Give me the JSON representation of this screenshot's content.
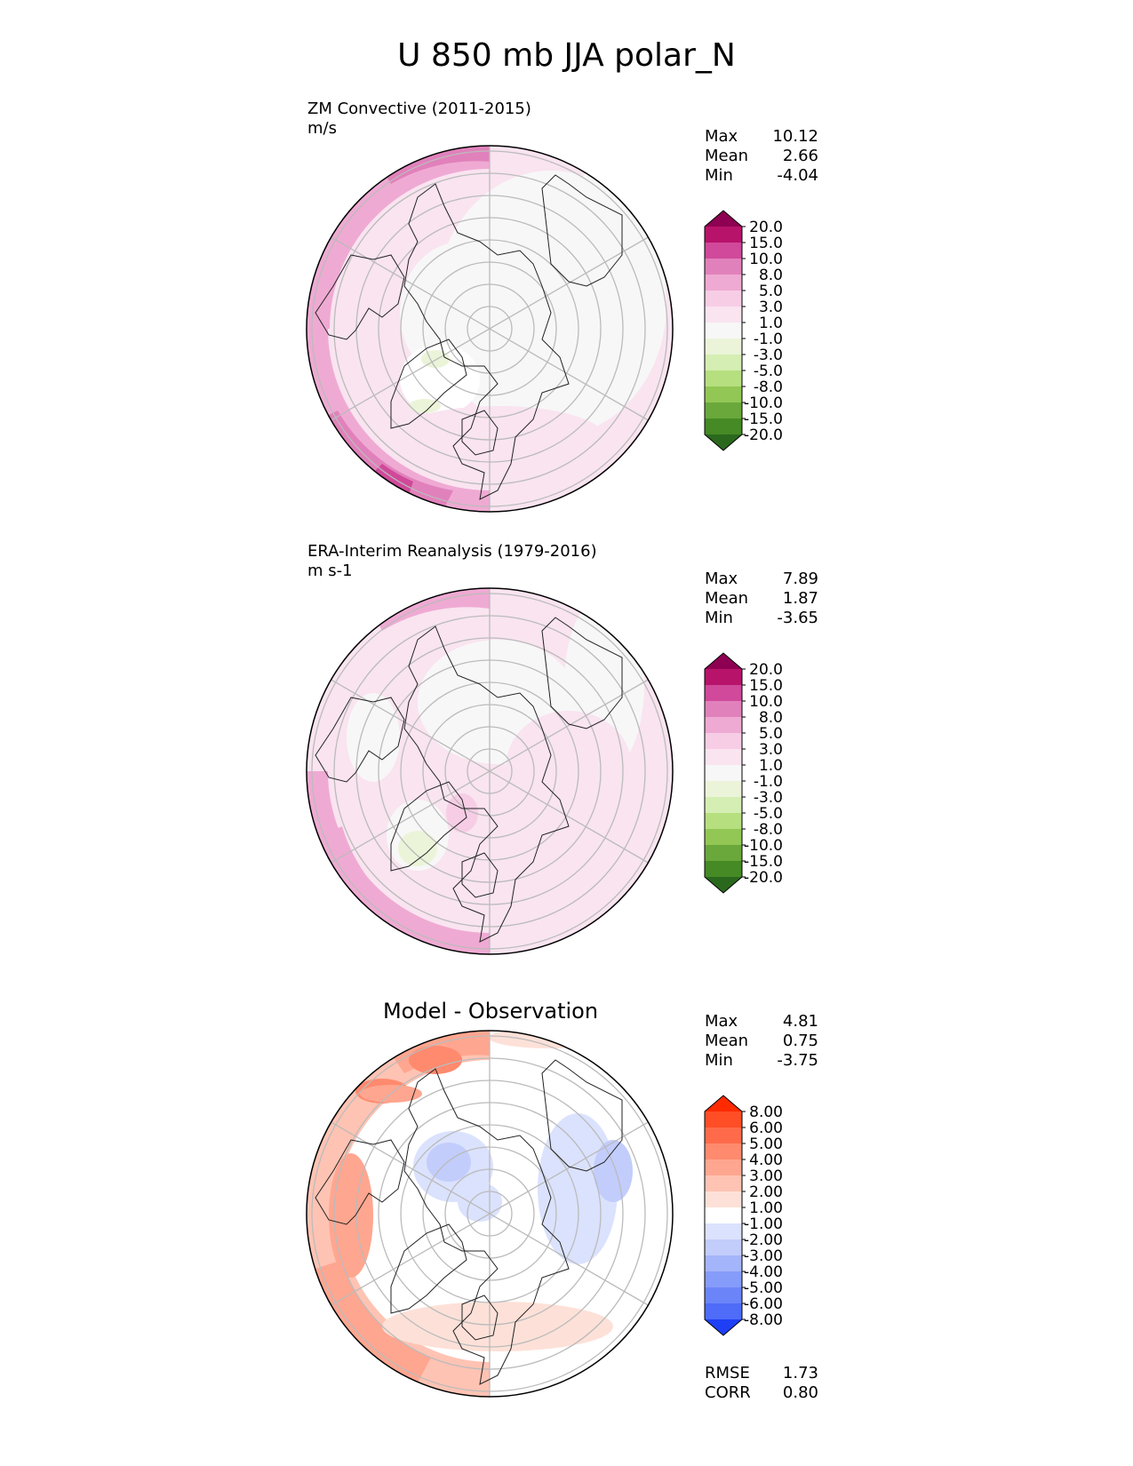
{
  "figure": {
    "title": "U 850 mb JJA polar_N"
  },
  "chart_data": [
    {
      "type": "heatmap",
      "projection": "north-polar-stereographic",
      "title": "ZM Convective (2011-2015)",
      "units": "m/s",
      "stats": {
        "Max": "10.12",
        "Mean": "2.66",
        "Min": "-4.04"
      },
      "colorbar": {
        "levels": [
          "20.0",
          "15.0",
          "10.0",
          "8.0",
          "5.0",
          "3.0",
          "1.0",
          "-1.0",
          "-3.0",
          "-5.0",
          "-8.0",
          "-10.0",
          "-15.0",
          "-20.0"
        ],
        "colors": [
          "#8e0152",
          "#b8136b",
          "#d0499a",
          "#e181bb",
          "#efaad3",
          "#f7cde6",
          "#f9e4f0",
          "#f7f7f7",
          "#ebf4d9",
          "#d5eeb3",
          "#b6df7f",
          "#92c755",
          "#6aa83b",
          "#458a24",
          "#2a691d"
        ]
      }
    },
    {
      "type": "heatmap",
      "projection": "north-polar-stereographic",
      "title": "ERA-Interim Reanalysis (1979-2016)",
      "units": "m s-1",
      "stats": {
        "Max": "7.89",
        "Mean": "1.87",
        "Min": "-3.65"
      },
      "colorbar": {
        "levels": [
          "20.0",
          "15.0",
          "10.0",
          "8.0",
          "5.0",
          "3.0",
          "1.0",
          "-1.0",
          "-3.0",
          "-5.0",
          "-8.0",
          "-10.0",
          "-15.0",
          "-20.0"
        ],
        "colors": [
          "#8e0152",
          "#b8136b",
          "#d0499a",
          "#e181bb",
          "#efaad3",
          "#f7cde6",
          "#f9e4f0",
          "#f7f7f7",
          "#ebf4d9",
          "#d5eeb3",
          "#b6df7f",
          "#92c755",
          "#6aa83b",
          "#458a24",
          "#2a691d"
        ]
      }
    },
    {
      "type": "heatmap",
      "projection": "north-polar-stereographic",
      "title": "Model - Observation",
      "units": "",
      "stats": {
        "Max": "4.81",
        "Mean": "0.75",
        "Min": "-3.75"
      },
      "metrics": {
        "RMSE": "1.73",
        "CORR": "0.80"
      },
      "colorbar": {
        "levels": [
          "8.00",
          "6.00",
          "5.00",
          "4.00",
          "3.00",
          "2.00",
          "1.00",
          "-1.00",
          "-2.00",
          "-3.00",
          "-4.00",
          "-5.00",
          "-6.00",
          "-8.00"
        ],
        "colors": [
          "#ff2a00",
          "#ff4d26",
          "#ff6b4a",
          "#ff8a6e",
          "#ffa690",
          "#ffc3b3",
          "#fde1d8",
          "#ffffff",
          "#dbe2fd",
          "#c2cdfc",
          "#a5b5fb",
          "#869cfa",
          "#6b85f9",
          "#4e6cf8",
          "#1f3ff6"
        ]
      }
    }
  ]
}
